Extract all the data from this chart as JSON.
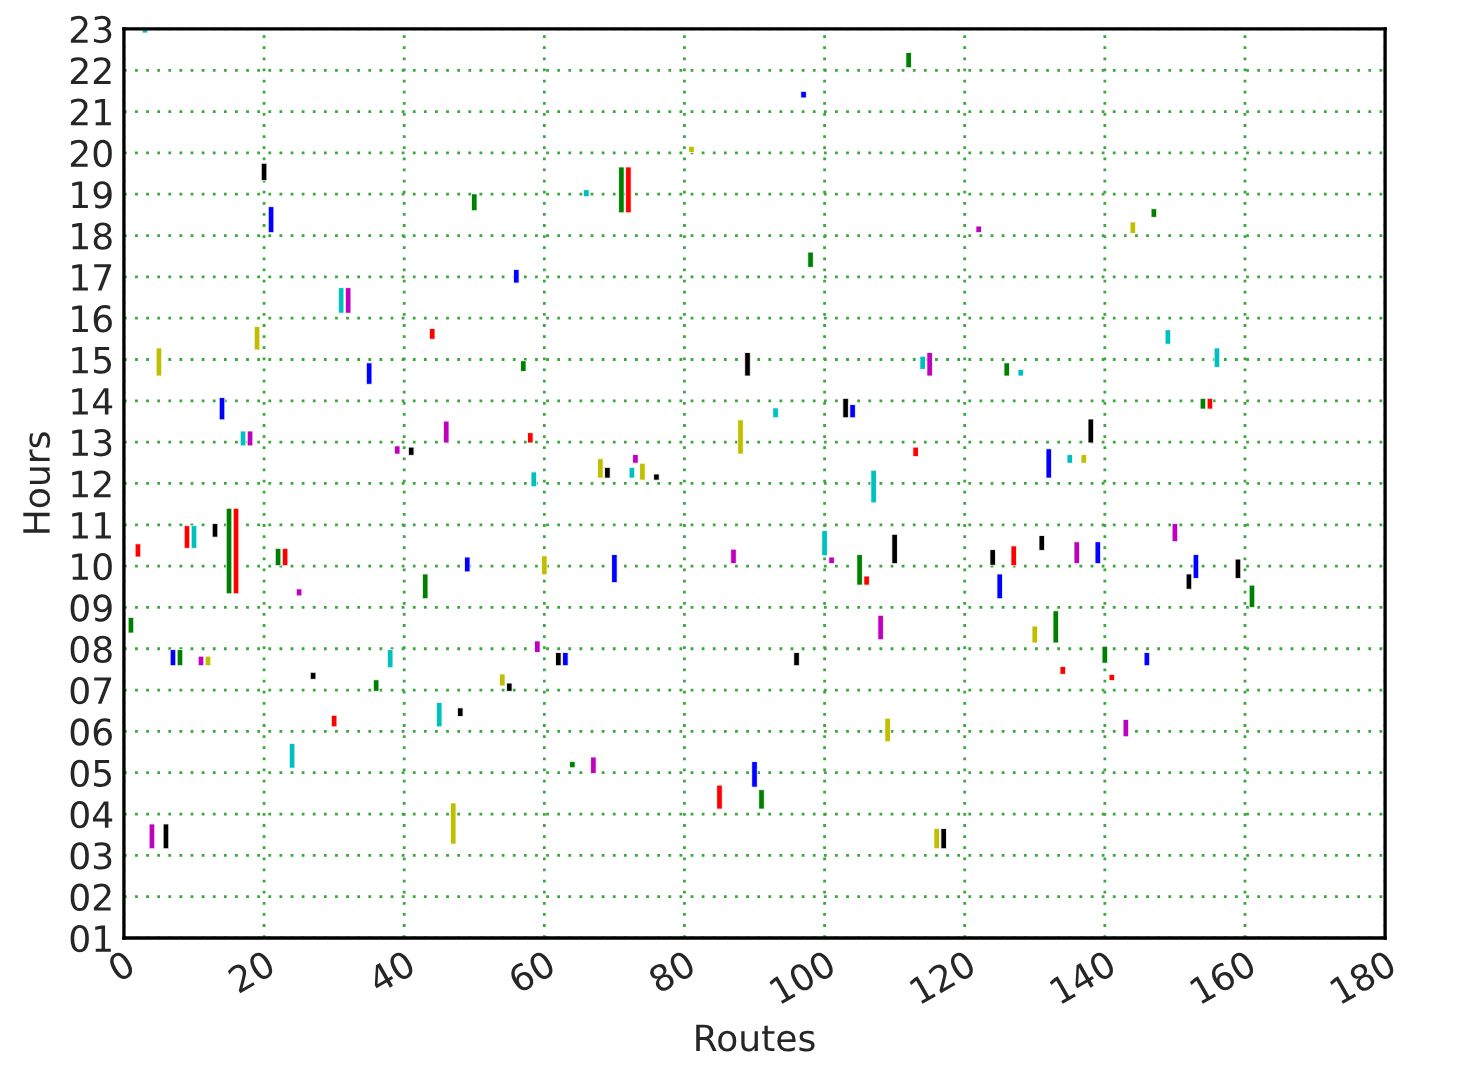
{
  "chart_data": {
    "type": "bar",
    "xlabel": "Routes",
    "ylabel": "Hours",
    "x": [
      1,
      2,
      3,
      4,
      5,
      6,
      7,
      8,
      9,
      10,
      11,
      12,
      13,
      14,
      15,
      16,
      17,
      18,
      19,
      20,
      21,
      22,
      23,
      24,
      25,
      27,
      30,
      31,
      32,
      35,
      36,
      38,
      39,
      41,
      43,
      44,
      45,
      46,
      47,
      48,
      49,
      50,
      54,
      55,
      56,
      57,
      58,
      58.5,
      59,
      60,
      62,
      63,
      64,
      66,
      67,
      68,
      69,
      70,
      71,
      72,
      72.5,
      73,
      74,
      76,
      81,
      85,
      87,
      88,
      89,
      90,
      91,
      93,
      96,
      97,
      98,
      100,
      101,
      103,
      104,
      105,
      106,
      107,
      108,
      109,
      110,
      112,
      113,
      114,
      115,
      116,
      117,
      122,
      124,
      125,
      126,
      127,
      128,
      130,
      131,
      132,
      133,
      134,
      135,
      136,
      137,
      138,
      139,
      140,
      141,
      143,
      144,
      146,
      147,
      149,
      150,
      152,
      153,
      154,
      155,
      156,
      159,
      161
    ],
    "base": [
      8.38,
      10.22,
      22.9,
      3.16,
      14.6,
      3.16,
      7.59,
      7.59,
      10.43,
      10.43,
      7.59,
      7.59,
      10.7,
      13.54,
      9.33,
      9.33,
      12.91,
      12.91,
      15.23,
      19.33,
      18.07,
      10.01,
      10.01,
      5.11,
      9.28,
      7.26,
      6.11,
      16.12,
      16.12,
      14.4,
      6.97,
      7.54,
      12.71,
      12.68,
      9.21,
      15.49,
      6.11,
      12.98,
      3.27,
      6.36,
      9.86,
      18.6,
      7.1,
      6.97,
      16.85,
      14.71,
      12.98,
      11.92,
      7.91,
      9.79,
      7.59,
      7.59,
      5.12,
      18.94,
      4.98,
      12.13,
      12.13,
      9.6,
      18.55,
      18.55,
      12.13,
      12.49,
      12.08,
      12.08,
      20.01,
      4.12,
      10.06,
      12.71,
      14.6,
      4.65,
      4.12,
      13.59,
      7.59,
      21.33,
      17.23,
      10.25,
      10.06,
      13.59,
      13.59,
      9.54,
      9.54,
      11.53,
      8.22,
      5.75,
      10.06,
      22.06,
      12.65,
      14.76,
      14.6,
      3.16,
      3.16,
      18.07,
      10.02,
      9.21,
      14.6,
      10.01,
      14.6,
      8.14,
      10.38,
      12.13,
      8.14,
      7.38,
      12.49,
      10.06,
      12.49,
      12.98,
      10.06,
      7.65,
      7.23,
      5.87,
      18.05,
      7.59,
      18.44,
      15.37,
      10.59,
      9.44,
      9.7,
      13.8,
      13.8,
      14.81,
      9.7,
      9.0
    ],
    "values": [
      0.38,
      0.32,
      0.1,
      0.6,
      0.68,
      0.6,
      0.39,
      0.39,
      0.55,
      0.55,
      0.23,
      0.23,
      0.33,
      0.54,
      2.07,
      2.07,
      0.36,
      0.36,
      0.57,
      0.42,
      0.63,
      0.42,
      0.42,
      0.6,
      0.17,
      0.17,
      0.28,
      0.62,
      0.62,
      0.52,
      0.28,
      0.44,
      0.2,
      0.2,
      0.6,
      0.26,
      0.59,
      0.53,
      1.0,
      0.21,
      0.36,
      0.41,
      0.29,
      0.2,
      0.33,
      0.26,
      0.25,
      0.36,
      0.28,
      0.46,
      0.32,
      0.32,
      0.15,
      0.17,
      0.4,
      0.47,
      0.26,
      0.68,
      1.11,
      1.11,
      0.26,
      0.21,
      0.41,
      0.15,
      0.15,
      0.58,
      0.35,
      0.83,
      0.57,
      0.62,
      0.47,
      0.24,
      0.32,
      0.16,
      0.37,
      0.61,
      0.16,
      0.47,
      0.32,
      0.74,
      0.22,
      0.79,
      0.59,
      0.57,
      0.71,
      0.37,
      0.23,
      0.32,
      0.57,
      0.49,
      0.49,
      0.16,
      0.38,
      0.6,
      0.32,
      0.48,
      0.16,
      0.41,
      0.36,
      0.71,
      0.78,
      0.19,
      0.21,
      0.53,
      0.21,
      0.58,
      0.53,
      0.41,
      0.15,
      0.42,
      0.28,
      0.32,
      0.21,
      0.35,
      0.44,
      0.37,
      0.58,
      0.26,
      0.26,
      0.47,
      0.47,
      0.54
    ],
    "colors": [
      "#008000",
      "#ff0000",
      "#00bfbf",
      "#bf00bf",
      "#bfbf00",
      "#000000",
      "#0000ff",
      "#008000",
      "#ff0000",
      "#00bfbf",
      "#bf00bf",
      "#bfbf00",
      "#000000",
      "#0000ff",
      "#008000",
      "#ff0000",
      "#00bfbf",
      "#bf00bf",
      "#bfbf00",
      "#000000",
      "#0000ff",
      "#008000",
      "#ff0000",
      "#00bfbf",
      "#bf00bf",
      "#000000",
      "#ff0000",
      "#00bfbf",
      "#bf00bf",
      "#0000ff",
      "#008000",
      "#00bfbf",
      "#bf00bf",
      "#000000",
      "#008000",
      "#ff0000",
      "#00bfbf",
      "#bf00bf",
      "#bfbf00",
      "#000000",
      "#0000ff",
      "#008000",
      "#bfbf00",
      "#000000",
      "#0000ff",
      "#008000",
      "#ff0000",
      "#00bfbf",
      "#bf00bf",
      "#bfbf00",
      "#000000",
      "#0000ff",
      "#008000",
      "#00bfbf",
      "#bf00bf",
      "#bfbf00",
      "#000000",
      "#0000ff",
      "#008000",
      "#ff0000",
      "#00bfbf",
      "#bf00bf",
      "#bfbf00",
      "#000000",
      "#bfbf00",
      "#ff0000",
      "#bf00bf",
      "#bfbf00",
      "#000000",
      "#0000ff",
      "#008000",
      "#00bfbf",
      "#000000",
      "#0000ff",
      "#008000",
      "#00bfbf",
      "#bf00bf",
      "#000000",
      "#0000ff",
      "#008000",
      "#ff0000",
      "#00bfbf",
      "#bf00bf",
      "#bfbf00",
      "#000000",
      "#008000",
      "#ff0000",
      "#00bfbf",
      "#bf00bf",
      "#bfbf00",
      "#000000",
      "#bf00bf",
      "#000000",
      "#0000ff",
      "#008000",
      "#ff0000",
      "#00bfbf",
      "#bfbf00",
      "#000000",
      "#0000ff",
      "#008000",
      "#ff0000",
      "#00bfbf",
      "#bf00bf",
      "#bfbf00",
      "#000000",
      "#0000ff",
      "#008000",
      "#ff0000",
      "#bf00bf",
      "#bfbf00",
      "#0000ff",
      "#008000",
      "#00bfbf",
      "#bf00bf",
      "#000000",
      "#0000ff",
      "#008000",
      "#ff0000",
      "#00bfbf",
      "#000000",
      "#008000"
    ],
    "xlim": [
      0,
      180
    ],
    "xticks": [
      0,
      20,
      40,
      60,
      80,
      100,
      120,
      140,
      160,
      180
    ],
    "ylim": [
      1,
      23
    ],
    "yticks": [
      {
        "value": 1,
        "label": "01"
      },
      {
        "value": 2,
        "label": "02"
      },
      {
        "value": 3,
        "label": "03"
      },
      {
        "value": 4,
        "label": "04"
      },
      {
        "value": 5,
        "label": "05"
      },
      {
        "value": 6,
        "label": "06"
      },
      {
        "value": 7,
        "label": "07"
      },
      {
        "value": 8,
        "label": "08"
      },
      {
        "value": 9,
        "label": "09"
      },
      10,
      11,
      12,
      13,
      14,
      15,
      16,
      17,
      18,
      19,
      20,
      21,
      22,
      23
    ],
    "grid": true
  }
}
